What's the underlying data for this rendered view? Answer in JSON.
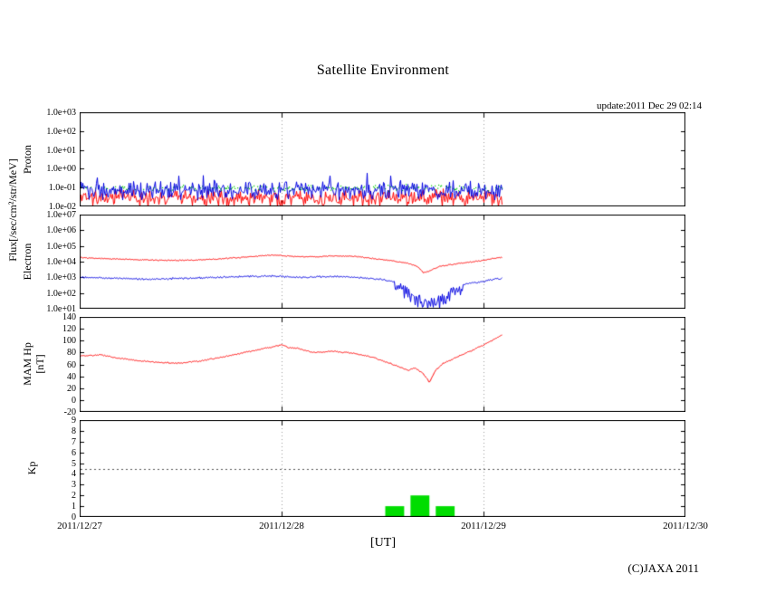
{
  "title": "Satellite Environment",
  "update_text": "update:2011 Dec 29 02:14",
  "xlabel": "[UT]",
  "copyright": "(C)JAXA 2011",
  "axis_labels": {
    "flux": "Flux[/sec/cm²/str/MeV]",
    "proton": "Proton",
    "electron": "Electron",
    "mam_hp": "MAM Hp",
    "mam_hp_unit": "[nT]",
    "kp": "Kp"
  },
  "chart_data": {
    "x_axis": {
      "tick_labels": [
        "2011/12/27",
        "2011/12/28",
        "2011/12/29",
        "2011/12/30"
      ],
      "span_days": 3,
      "gridline_days": [
        1,
        2
      ],
      "data_end_day": 2.09
    },
    "panels": [
      {
        "name": "proton_flux",
        "type": "line",
        "yscale": "log",
        "ylim": [
          0.01,
          1000
        ],
        "ytick_labels": [
          "1.0e+03",
          "1.0e+02",
          "1.0e+01",
          "1.0e+00",
          "1.0e-01",
          "1.0e-02"
        ],
        "series": [
          {
            "name": "proton-band-red",
            "color": "#ff0000",
            "style": "noisy-band",
            "center": 0.03,
            "noise_decades": 0.45,
            "spike_prob": 0.08,
            "spike_decades": 0.4,
            "spike_dir": -1
          },
          {
            "name": "proton-speckle-green",
            "color": "#00cc00",
            "style": "speckle",
            "center": 0.1,
            "noise_decades": 0.2,
            "density": 0.5
          },
          {
            "name": "proton-band-blue",
            "color": "#0000e0",
            "style": "noisy-band",
            "center": 0.07,
            "noise_decades": 0.5,
            "spike_prob": 0.06,
            "spike_decades": 0.35,
            "spike_dir": 1
          }
        ]
      },
      {
        "name": "electron_flux",
        "type": "line",
        "yscale": "log",
        "ylim": [
          10,
          10000000
        ],
        "ytick_labels": [
          "1.0e+07",
          "1.0e+06",
          "1.0e+05",
          "1.0e+04",
          "1.0e+03",
          "1.0e+02",
          "1.0e+01"
        ],
        "series": [
          {
            "name": "electron-high",
            "color": "#ff0000",
            "style": "line-noisy",
            "noise_decades": 0.04,
            "points": [
              [
                0,
                18000
              ],
              [
                0.15,
                15000
              ],
              [
                0.3,
                13000
              ],
              [
                0.45,
                12000
              ],
              [
                0.55,
                12500
              ],
              [
                0.7,
                15000
              ],
              [
                0.85,
                21000
              ],
              [
                0.95,
                26000
              ],
              [
                1.05,
                22000
              ],
              [
                1.15,
                20000
              ],
              [
                1.25,
                23000
              ],
              [
                1.35,
                22000
              ],
              [
                1.45,
                16000
              ],
              [
                1.55,
                11000
              ],
              [
                1.62,
                8000
              ],
              [
                1.67,
                5000
              ],
              [
                1.7,
                2000
              ],
              [
                1.73,
                2500
              ],
              [
                1.78,
                5000
              ],
              [
                1.85,
                7000
              ],
              [
                1.95,
                10000
              ],
              [
                2.0,
                12000
              ],
              [
                2.05,
                16000
              ],
              [
                2.09,
                19000
              ]
            ]
          },
          {
            "name": "electron-low",
            "color": "#0000e0",
            "style": "line-noisy",
            "noise_decades": 0.07,
            "dropout_region": {
              "x0": 1.56,
              "x1": 1.9,
              "extra_decades": 1.1
            },
            "points": [
              [
                0,
                1000
              ],
              [
                0.2,
                850
              ],
              [
                0.35,
                750
              ],
              [
                0.5,
                850
              ],
              [
                0.65,
                950
              ],
              [
                0.8,
                1100
              ],
              [
                0.95,
                1200
              ],
              [
                1.1,
                1000
              ],
              [
                1.25,
                1150
              ],
              [
                1.4,
                950
              ],
              [
                1.5,
                700
              ],
              [
                1.58,
                450
              ],
              [
                1.63,
                250
              ],
              [
                1.68,
                90
              ],
              [
                1.72,
                40
              ],
              [
                1.76,
                60
              ],
              [
                1.8,
                120
              ],
              [
                1.85,
                250
              ],
              [
                1.92,
                400
              ],
              [
                2.0,
                550
              ],
              [
                2.05,
                750
              ],
              [
                2.09,
                900
              ]
            ]
          }
        ]
      },
      {
        "name": "mam_hp",
        "type": "line",
        "yscale": "linear",
        "ylim": [
          -20,
          140
        ],
        "ytick_labels": [
          "140",
          "120",
          "100",
          "80",
          "60",
          "40",
          "20",
          "0",
          "-20"
        ],
        "series": [
          {
            "name": "hp",
            "color": "#ff0000",
            "style": "line-noisy-linear",
            "noise": 1.3,
            "points": [
              [
                0,
                74
              ],
              [
                0.1,
                76
              ],
              [
                0.2,
                70
              ],
              [
                0.3,
                66
              ],
              [
                0.4,
                63
              ],
              [
                0.5,
                62
              ],
              [
                0.6,
                66
              ],
              [
                0.7,
                72
              ],
              [
                0.8,
                79
              ],
              [
                0.9,
                86
              ],
              [
                1.0,
                93
              ],
              [
                1.03,
                88
              ],
              [
                1.08,
                87
              ],
              [
                1.15,
                80
              ],
              [
                1.25,
                82
              ],
              [
                1.35,
                79
              ],
              [
                1.45,
                72
              ],
              [
                1.55,
                60
              ],
              [
                1.62,
                50
              ],
              [
                1.66,
                54
              ],
              [
                1.7,
                44
              ],
              [
                1.73,
                30
              ],
              [
                1.76,
                50
              ],
              [
                1.8,
                62
              ],
              [
                1.85,
                70
              ],
              [
                1.9,
                78
              ],
              [
                1.95,
                85
              ],
              [
                2.0,
                93
              ],
              [
                2.05,
                102
              ],
              [
                2.09,
                110
              ]
            ]
          }
        ]
      },
      {
        "name": "kp_index",
        "type": "bar",
        "yscale": "linear",
        "ylim": [
          0,
          9
        ],
        "ytick_labels": [
          "9",
          "8",
          "7",
          "6",
          "5",
          "4",
          "3",
          "2",
          "1",
          "0"
        ],
        "storm_threshold_line": 4.5,
        "bars": {
          "name": "kp-bars",
          "color": "#00dd00",
          "bin_hours": 3,
          "start_label": "2011/12/27 00:00",
          "values": [
            0,
            0,
            0,
            0,
            0,
            0,
            0,
            0,
            0,
            0,
            0,
            0,
            1,
            2,
            1,
            0
          ]
        }
      }
    ]
  }
}
